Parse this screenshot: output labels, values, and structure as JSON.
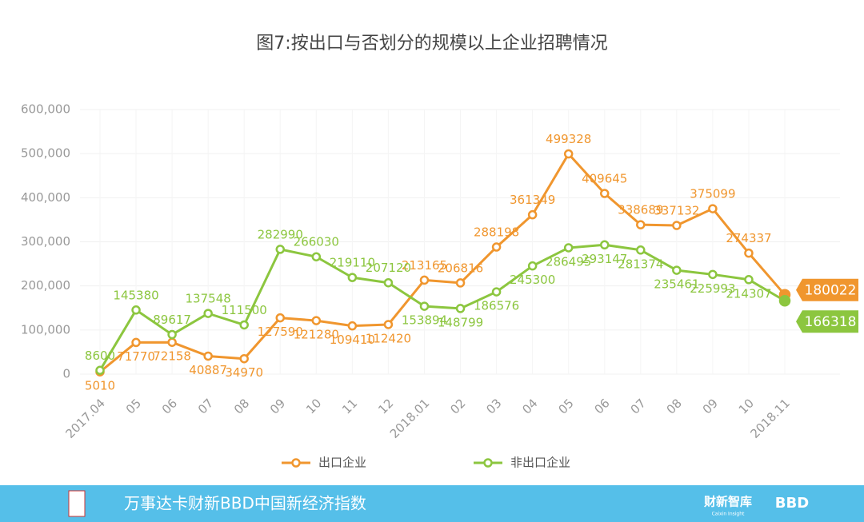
{
  "chart_data": {
    "type": "line",
    "title": "图7:按出口与否划分的规模以上企业招聘情况",
    "categories": [
      "2017.04",
      "05",
      "06",
      "07",
      "08",
      "09",
      "10",
      "11",
      "12",
      "2018.01",
      "02",
      "03",
      "04",
      "05",
      "06",
      "07",
      "08",
      "09",
      "10",
      "2018.11"
    ],
    "series": [
      {
        "name": "出口企业",
        "color": "#f0962e",
        "values": [
          5010,
          71770,
          72158,
          40887,
          34970,
          127590,
          121280,
          109410,
          112420,
          213165,
          206816,
          288198,
          361349,
          499328,
          409645,
          338689,
          337132,
          375099,
          274337,
          180022
        ]
      },
      {
        "name": "非出口企业",
        "color": "#8cc63f",
        "values": [
          8600,
          145380,
          89617,
          137548,
          111500,
          282990,
          266030,
          219110,
          207120,
          153894,
          148799,
          186576,
          245300,
          286495,
          293147,
          281374,
          235461,
          225993,
          214307,
          166318
        ]
      }
    ],
    "ylim": [
      0,
      600000
    ],
    "yticks": [
      0,
      {
        "value": 100000,
        "label": "100,000"
      },
      {
        "value": 200000,
        "label": "200,000"
      },
      {
        "value": 300000,
        "label": "300,000"
      },
      {
        "value": 400000,
        "label": "400,000"
      },
      {
        "value": 500000,
        "label": "500,000"
      },
      {
        "value": 600000,
        "label": "600,000"
      }
    ],
    "grid": true,
    "legend": "bottom"
  },
  "footer": {
    "title": "万事达卡财新BBD中国新经济指数",
    "brand": "财新智库",
    "brand_sub": "Caixin Insight",
    "logo": "BBD"
  }
}
